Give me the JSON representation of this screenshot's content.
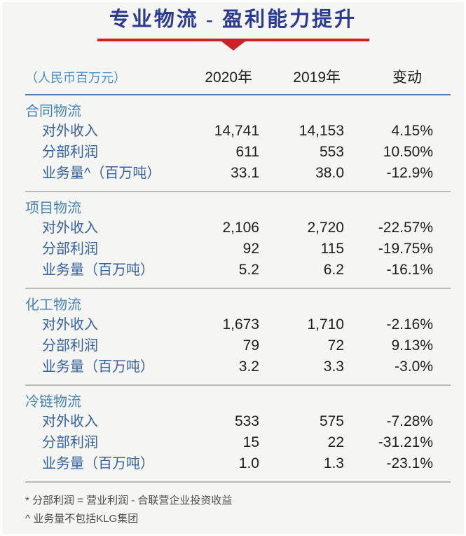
{
  "title": "专业物流 - 盈利能力提升",
  "table": {
    "unit_label": "（人民币百万元）",
    "columns": [
      "2020年",
      "2019年",
      "变动"
    ],
    "sections": [
      {
        "name": "合同物流",
        "rows": [
          {
            "label": "对外收入",
            "y2020": "14,741",
            "y2019": "14,153",
            "change": "4.15%"
          },
          {
            "label": "分部利润",
            "y2020": "611",
            "y2019": "553",
            "change": "10.50%"
          },
          {
            "label": "业务量^（百万吨）",
            "y2020": "33.1",
            "y2019": "38.0",
            "change": "-12.9%"
          }
        ]
      },
      {
        "name": "项目物流",
        "rows": [
          {
            "label": "对外收入",
            "y2020": "2,106",
            "y2019": "2,720",
            "change": "-22.57%"
          },
          {
            "label": "分部利润",
            "y2020": "92",
            "y2019": "115",
            "change": "-19.75%"
          },
          {
            "label": "业务量（百万吨）",
            "y2020": "5.2",
            "y2019": "6.2",
            "change": "-16.1%"
          }
        ]
      },
      {
        "name": "化工物流",
        "rows": [
          {
            "label": "对外收入",
            "y2020": "1,673",
            "y2019": "1,710",
            "change": "-2.16%"
          },
          {
            "label": "分部利润",
            "y2020": "79",
            "y2019": "72",
            "change": "9.13%"
          },
          {
            "label": "业务量（百万吨）",
            "y2020": "3.2",
            "y2019": "3.3",
            "change": "-3.0%"
          }
        ]
      },
      {
        "name": "冷链物流",
        "rows": [
          {
            "label": "对外收入",
            "y2020": "533",
            "y2019": "575",
            "change": "-7.28%"
          },
          {
            "label": "分部利润",
            "y2020": "15",
            "y2019": "22",
            "change": "-31.21%"
          },
          {
            "label": "业务量（百万吨）",
            "y2020": "1.0",
            "y2019": "1.3",
            "change": "-23.1%"
          }
        ]
      }
    ]
  },
  "footnotes": [
    "* 分部利润 = 营业利润 - 合联营企业投资收益",
    "^ 业务量不包括KLG集团"
  ],
  "colors": {
    "title_blue": "#2B3A92",
    "accent_red": "#CE2127",
    "section_label_blue": "#4782B7",
    "row_label_blue": "#35619E",
    "unit_label_blue": "#4E8CBF",
    "header_rule_blue": "#4B80B3",
    "text_dark": "#1E1E1E",
    "divider_gray": "#B9B9B9",
    "background": "#F5F6F3"
  }
}
